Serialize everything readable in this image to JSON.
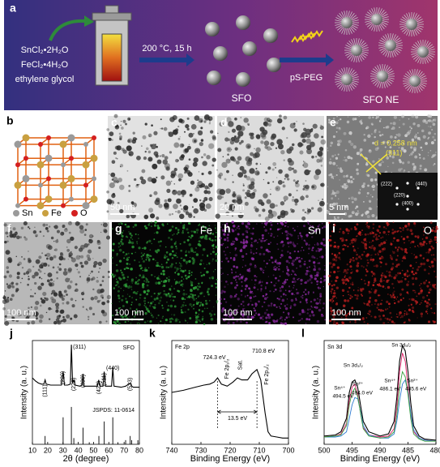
{
  "panels": {
    "a": {
      "label": "a",
      "reagents": [
        "SnCl₂•2H₂O",
        "FeCl₂•4H₂O",
        "ethylene glycol"
      ],
      "condition": "200 °C, 15 h",
      "product": "SFO",
      "coating": "pS-PEG",
      "final": "SFO NE"
    },
    "b": {
      "label": "b",
      "legend": [
        "Sn",
        "Fe",
        "O"
      ],
      "legend_colors": [
        "#9a9a9a",
        "#c9a040",
        "#d42020"
      ]
    },
    "c": {
      "label": "c",
      "scale": "50 nm"
    },
    "d": {
      "label": "d",
      "scale": "20 nm"
    },
    "e": {
      "label": "e",
      "scale": "5 nm",
      "spacing": "d = 0.258 nm",
      "plane": "(311)",
      "fft": [
        "(222)",
        "(440)",
        "(220)",
        "(400)"
      ]
    },
    "f": {
      "label": "f",
      "scale": "100 nm"
    },
    "g": {
      "label": "g",
      "element": "Fe",
      "scale": "100 nm",
      "color": "#2fa23a"
    },
    "h": {
      "label": "h",
      "element": "Sn",
      "scale": "100 nm",
      "color": "#8a2aa0"
    },
    "i": {
      "label": "i",
      "element": "O",
      "scale": "100 nm",
      "color": "#c02020"
    }
  },
  "charts": [
    {
      "label": "j",
      "type": "line",
      "xlabel": "2θ (degree)",
      "ylabel": "Intensity (a. u.)",
      "legend": "SFO",
      "reference": "JSPDS: 11-0614",
      "xlim": [
        10,
        80
      ],
      "xticks": [
        10,
        20,
        30,
        40,
        50,
        60,
        70,
        80
      ],
      "ylim": [
        0,
        100
      ],
      "x": [
        10,
        12,
        14,
        16,
        17.5,
        18.3,
        19,
        22,
        26,
        29,
        30.1,
        31,
        33,
        34.8,
        35.5,
        36.3,
        37.1,
        38,
        41,
        42.5,
        43.1,
        43.8,
        48,
        52.5,
        53.4,
        54.2,
        56.2,
        57,
        57.8,
        61.8,
        62.6,
        63.4,
        68,
        71,
        74,
        75,
        76,
        78,
        80
      ],
      "series": [
        {
          "color": "#000000",
          "values": [
            64,
            61,
            59,
            58,
            58,
            62,
            58,
            57,
            57,
            57,
            70,
            57,
            57,
            58,
            96,
            59,
            62,
            57,
            56,
            57,
            68,
            56,
            56,
            56,
            62,
            56,
            56,
            70,
            56,
            56,
            74,
            56,
            55,
            56,
            59,
            56,
            55,
            55,
            55
          ]
        }
      ],
      "sticks": {
        "color": "#000000",
        "x": [
          18.3,
          30.1,
          35.5,
          37.1,
          43.1,
          47.2,
          53.5,
          57.0,
          62.6,
          66,
          71.0,
          74.0,
          75.0,
          79.0
        ],
        "values": [
          8,
          26,
          36,
          6,
          16,
          2,
          8,
          22,
          26,
          2,
          4,
          8,
          4,
          4
        ]
      },
      "annotations": [
        {
          "text": "(111)",
          "x": 18.3
        },
        {
          "text": "(220)",
          "x": 30.1
        },
        {
          "text": "(311)",
          "x": 35.5
        },
        {
          "text": "(222)",
          "x": 37.1
        },
        {
          "text": "(400)",
          "x": 43.1
        },
        {
          "text": "(422)",
          "x": 53.5
        },
        {
          "text": "(511)",
          "x": 57
        },
        {
          "text": "(440)",
          "x": 62.6
        },
        {
          "text": "(533)",
          "x": 74
        }
      ]
    },
    {
      "label": "k",
      "type": "line",
      "xlabel": "Binding Energy (eV)",
      "ylabel": "Intensity (a. u.)",
      "legend": "Fe 2p",
      "xlim": [
        740,
        700
      ],
      "xticks": [
        740,
        730,
        720,
        710,
        700
      ],
      "ylim": [
        0,
        100
      ],
      "x": [
        740,
        736,
        732,
        729,
        727,
        725.5,
        724.3,
        723,
        721,
        719,
        717.5,
        716,
        714,
        712.5,
        710.8,
        709.5,
        708,
        707,
        706,
        704,
        702,
        700
      ],
      "series": [
        {
          "color": "#000000",
          "values": [
            50,
            52,
            55,
            57,
            58,
            60,
            64,
            58,
            56,
            60,
            64,
            62,
            62,
            68,
            72,
            62,
            30,
            12,
            8,
            7,
            6,
            6
          ]
        }
      ],
      "annotations": [
        {
          "text": "724.3 eV",
          "x": 724.3
        },
        {
          "text": "Fe 2p₁/₂",
          "x": 721
        },
        {
          "text": "Sat.",
          "x": 716.5
        },
        {
          "text": "710.8 eV",
          "x": 710.8
        },
        {
          "text": "Fe 2p₃/₂",
          "x": 707.5
        },
        {
          "text": "13.5 eV",
          "x": 717.5
        }
      ],
      "markers": {
        "x": [
          724.3,
          710.8
        ]
      }
    },
    {
      "label": "l",
      "type": "line",
      "xlabel": "Binding Energy (eV)",
      "ylabel": "Intensity (a. u.)",
      "legend": "Sn 3d",
      "xlim": [
        500,
        480
      ],
      "xticks": [
        500,
        495,
        490,
        485,
        480
      ],
      "ylim": [
        0,
        100
      ],
      "x": [
        500,
        498,
        497,
        496,
        495.5,
        495,
        494.5,
        494,
        493.5,
        493,
        492,
        490,
        488.5,
        487.5,
        487,
        486.5,
        486,
        485.5,
        485,
        484.5,
        484,
        483,
        482,
        480
      ],
      "series": [
        {
          "color": "#000000",
          "values": [
            8,
            9,
            12,
            25,
            50,
            60,
            62,
            55,
            38,
            22,
            12,
            8,
            10,
            22,
            45,
            80,
            95,
            90,
            70,
            40,
            18,
            8,
            5,
            4
          ]
        },
        {
          "color": "#e0206a",
          "values": [
            7,
            8,
            10,
            20,
            42,
            55,
            58,
            48,
            30,
            16,
            9,
            7,
            8,
            15,
            35,
            70,
            88,
            80,
            55,
            28,
            12,
            6,
            4,
            3
          ]
        },
        {
          "color": "#2a7ad0",
          "values": [
            7,
            7,
            8,
            12,
            25,
            38,
            45,
            44,
            32,
            18,
            9,
            6,
            6,
            10,
            22,
            42,
            58,
            62,
            50,
            30,
            14,
            6,
            4,
            3
          ]
        },
        {
          "color": "#3aa040",
          "values": [
            7,
            8,
            9,
            18,
            38,
            50,
            54,
            46,
            30,
            15,
            8,
            6,
            7,
            12,
            28,
            55,
            70,
            65,
            48,
            25,
            10,
            5,
            3,
            3
          ]
        }
      ],
      "annotations": [
        {
          "text": "Sn 3d₃/₂",
          "x": 494.8
        },
        {
          "text": "Sn 3d₅/₂",
          "x": 486.2
        },
        {
          "text": "Sn⁴⁺",
          "x": 497.2
        },
        {
          "text": "494.5 eV",
          "x": 496.6
        },
        {
          "text": "Sn²⁺",
          "x": 494
        },
        {
          "text": "494.0 eV",
          "x": 493.2
        },
        {
          "text": "Sn⁴⁺",
          "x": 488.2
        },
        {
          "text": "486.1 eV",
          "x": 488.2
        },
        {
          "text": "Sn²⁺",
          "x": 484.2
        },
        {
          "text": "485.6 eV",
          "x": 483.6
        }
      ]
    }
  ]
}
